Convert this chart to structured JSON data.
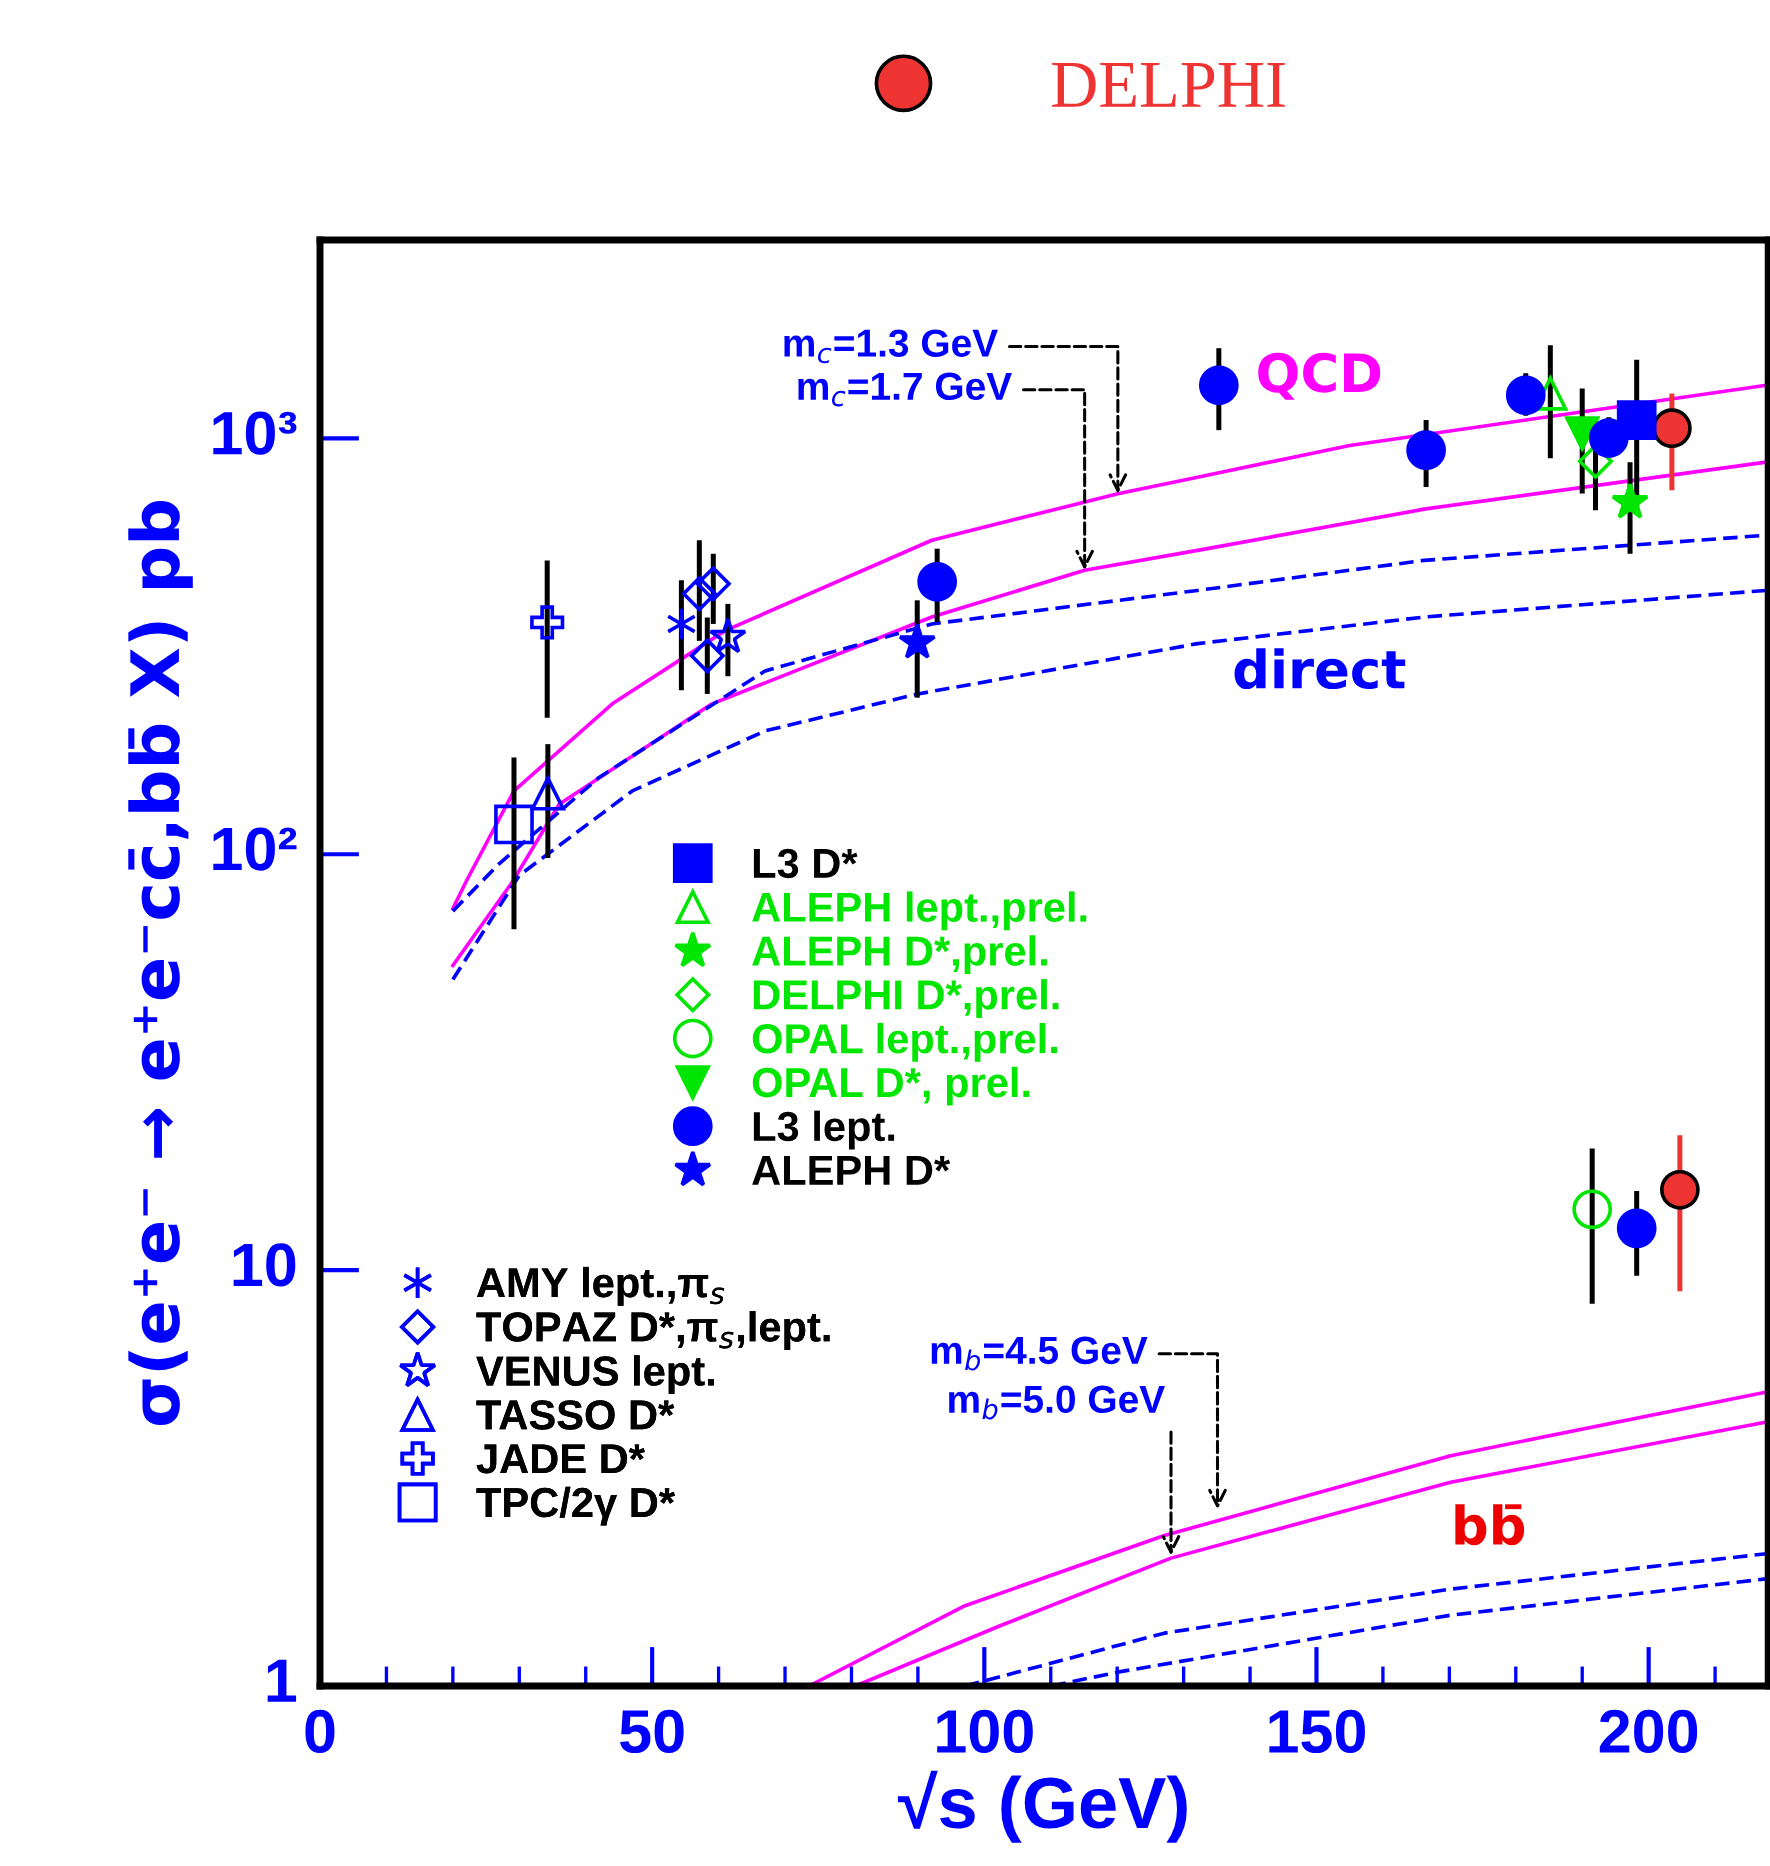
{
  "chart_data": {
    "type": "scatter",
    "xlabel": "√s (GeV)",
    "ylabel": "σ(e⁺e⁻ → e⁺e⁻cc̄,bb̄ X) pb",
    "log": "y",
    "xlim": [
      0,
      218
    ],
    "ylim": [
      1,
      3000
    ],
    "xticks": [
      0,
      {
        "value": 10,
        "label": null
      },
      {
        "value": 20,
        "label": null
      },
      {
        "value": 30,
        "label": null
      },
      {
        "value": 40,
        "label": null
      },
      50,
      {
        "value": 60,
        "label": null
      },
      {
        "value": 70,
        "label": null
      },
      {
        "value": 80,
        "label": null
      },
      {
        "value": 90,
        "label": null
      },
      100,
      {
        "value": 110,
        "label": null
      },
      {
        "value": 120,
        "label": null
      },
      {
        "value": 130,
        "label": null
      },
      {
        "value": 140,
        "label": null
      },
      150,
      {
        "value": 160,
        "label": null
      },
      {
        "value": 170,
        "label": null
      },
      {
        "value": 180,
        "label": null
      },
      {
        "value": 190,
        "label": null
      },
      200,
      {
        "value": 210,
        "label": null
      }
    ],
    "yticks": [
      1,
      10,
      {
        "value": 100,
        "label": "10²"
      },
      {
        "value": 1000,
        "label": "10³"
      }
    ],
    "grid": false,
    "legend": "left",
    "series": [
      {
        "name": "DELPHI",
        "color": "#ee3333",
        "marker": "circle",
        "x": [
          203.5,
          204.7
        ],
        "values": [
          1058,
          15.6
        ],
        "errors": [
          [
            750,
            1283
          ],
          [
            8.9,
            21.1
          ]
        ]
      },
      {
        "name": "L3 D*",
        "color": "#0000ff",
        "marker": "square",
        "x": [
          198.2
        ],
        "values": [
          1107
        ],
        "errors": [
          [
            672,
            1545
          ]
        ]
      },
      {
        "name": "ALEPH lept.,prel.",
        "color": "#00e600",
        "marker": "triangle-open",
        "x": [
          185.2
        ],
        "values": [
          1282
        ],
        "errors": [
          [
            896,
            1675
          ]
        ]
      },
      {
        "name": "ALEPH D*,prel.",
        "color": "#00e600",
        "marker": "star",
        "x": [
          197.2
        ],
        "values": [
          702
        ],
        "errors": [
          [
            528,
            876
          ]
        ]
      },
      {
        "name": "DELPHI D*,prel.",
        "color": "#00e600",
        "marker": "diamond-open",
        "x": [
          192.0
        ],
        "values": [
          881
        ],
        "errors": [
          [
            672,
            1087
          ]
        ]
      },
      {
        "name": "OPAL lept.,prel.",
        "color": "#00e600",
        "marker": "circle-open",
        "x": [
          191.5
        ],
        "values": [
          14.0
        ],
        "errors": [
          [
            8.3,
            19.6
          ]
        ]
      },
      {
        "name": "OPAL D*, prel.",
        "color": "#00e600",
        "marker": "triangle-down",
        "x": [
          190.0
        ],
        "values": [
          1028
        ],
        "errors": [
          [
            737,
            1318
          ]
        ]
      },
      {
        "name": "L3 lept.",
        "color": "#0000ff",
        "marker": "circle",
        "x": [
          92.9,
          135.3,
          166.5,
          181.5,
          194.0,
          198.2
        ],
        "values": [
          452,
          1342,
          937,
          1270,
          1002,
          12.6
        ],
        "errors": [
          [
            362,
            543
          ],
          [
            1047,
            1648
          ],
          [
            764,
            1107
          ],
          [
            1134,
            1435
          ],
          [
            920,
            1125
          ],
          [
            9.7,
            15.5
          ]
        ]
      },
      {
        "name": "ALEPH D*",
        "color": "#0000ff",
        "marker": "star",
        "x": [
          89.9
        ],
        "values": [
          323
        ],
        "errors": [
          [
            238,
            408
          ]
        ]
      },
      {
        "name": "AMY lept.,π$_{s}$",
        "color": "#0000ff",
        "marker": "cross",
        "x": [
          54.4
        ],
        "values": [
          358
        ],
        "errors": [
          [
            248,
            456
          ]
        ]
      },
      {
        "name": "TOPAZ D*,π$_{s}$,lept.",
        "color": "#0000ff",
        "marker": "diamond-open",
        "x": [
          57.1,
          58.3,
          59.2
        ],
        "values": [
          423,
          300,
          447
        ],
        "errors": [
          [
            326,
            569
          ],
          [
            243,
            371
          ],
          [
            358,
            528
          ]
        ]
      },
      {
        "name": "VENUS lept.",
        "color": "#0000ff",
        "marker": "star-open",
        "x": [
          61.4
        ],
        "values": [
          333
        ],
        "errors": [
          [
            268,
            400
          ]
        ]
      },
      {
        "name": "TASSO D*",
        "color": "#0000ff",
        "marker": "triangle-open",
        "x": [
          34.3
        ],
        "values": [
          140
        ],
        "errors": [
          [
            98,
            184
          ]
        ]
      },
      {
        "name": "JADE D*",
        "color": "#0000ff",
        "marker": "cross-open",
        "x": [
          34.2
        ],
        "values": [
          361
        ],
        "errors": [
          [
            213,
            509
          ]
        ]
      },
      {
        "name": "TPC/2γ D*",
        "color": "#0000ff",
        "marker": "square-open",
        "x": [
          29.2
        ],
        "values": [
          118
        ],
        "errors": [
          [
            66,
            171
          ]
        ]
      },
      {
        "type": "line",
        "color": "#ff00ff",
        "line_style": "solid",
        "x": [
          20,
          22,
          29.2,
          44,
          61,
          92.1,
          120.1,
          132.1,
          155.0,
          217.7
        ],
        "values": [
          74,
          86,
          142,
          230,
          345,
          569,
          736,
          807,
          962,
          1342
        ]
      },
      {
        "type": "line",
        "color": "#ff00ff",
        "line_style": "solid",
        "x": [
          20,
          29,
          36,
          59,
          92.1,
          115.1,
          132.1,
          166.2,
          217.7
        ],
        "values": [
          54,
          86,
          132,
          230,
          372,
          482,
          538,
          676,
          877
        ]
      },
      {
        "type": "line",
        "color": "#0000ff",
        "line_style": "dashed",
        "x": [
          20,
          27,
          42,
          67,
          92.1,
          132.1,
          166.2,
          217.7
        ],
        "values": [
          73,
          95,
          153,
          276,
          358,
          431,
          509,
          585
        ]
      },
      {
        "type": "line",
        "color": "#0000ff",
        "line_style": "dashed",
        "x": [
          20,
          30,
          47,
          67,
          90,
          132.1,
          166.2,
          217.7
        ],
        "values": [
          50,
          89,
          142,
          198,
          243,
          321,
          372,
          431
        ]
      },
      {
        "type": "line",
        "color": "#ff00ff",
        "line_style": "solid",
        "x": [
          73.6,
          97.1,
          127.1,
          170.2,
          217.7
        ],
        "values": [
          1.0,
          1.56,
          2.3,
          3.58,
          5.09
        ]
      },
      {
        "type": "line",
        "color": "#ff00ff",
        "line_style": "solid",
        "x": [
          80.6,
          102.1,
          128.1,
          170.2,
          217.7
        ],
        "values": [
          1.0,
          1.39,
          2.03,
          3.09,
          4.31
        ]
      },
      {
        "type": "line",
        "color": "#0000ff",
        "line_style": "dashed",
        "x": [
          97.1,
          127.1,
          170.2,
          217.7
        ],
        "values": [
          1.0,
          1.34,
          1.71,
          2.08
        ]
      },
      {
        "type": "line",
        "color": "#0000ff",
        "line_style": "dashed",
        "x": [
          110.1,
          120.1,
          170.2,
          217.7
        ],
        "values": [
          1.0,
          1.08,
          1.48,
          1.81
        ]
      }
    ],
    "annotations": [
      {
        "text": "m$_{c}$=1.3 GeV",
        "x": 120.1,
        "y": 736
      },
      {
        "text": "m$_{c}$=1.7 GeV",
        "x": 115.1,
        "y": 482
      },
      {
        "text": "m$_{b}$=4.5 GeV",
        "x": 135.1,
        "y": 2.66
      },
      {
        "text": "m$_{b}$=5.0 GeV",
        "x": 128.1,
        "y": 2.06
      },
      "QCD",
      "direct",
      "bb̄"
    ]
  }
}
